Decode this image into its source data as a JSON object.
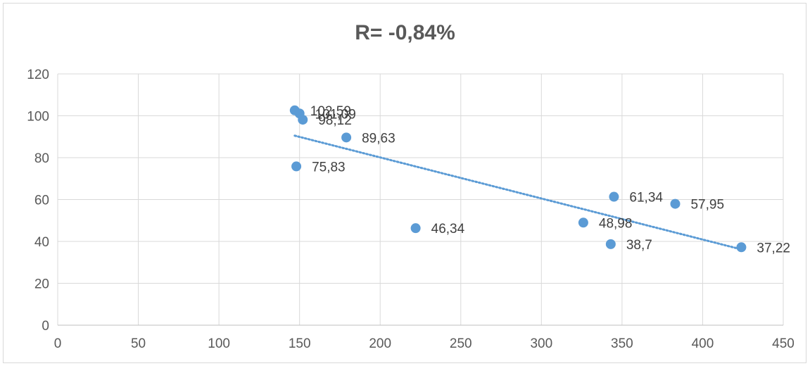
{
  "chart_data": {
    "type": "scatter",
    "title": "R= -0,84%",
    "xlabel": "",
    "ylabel": "",
    "xlim": [
      0,
      450
    ],
    "ylim": [
      0,
      120
    ],
    "x_ticks": [
      "0",
      "50",
      "100",
      "150",
      "200",
      "250",
      "300",
      "350",
      "400",
      "450"
    ],
    "y_ticks": [
      "0",
      "20",
      "40",
      "60",
      "80",
      "100",
      "120"
    ],
    "grid": true,
    "legend": "none",
    "marker_color": "#5b9bd5",
    "trendline": {
      "type": "linear",
      "style": "dotted",
      "color": "#5b9bd5",
      "x_range": [
        147,
        424
      ],
      "y_at_start": 90.5,
      "y_at_end": 36.2
    },
    "series": [
      {
        "points": [
          {
            "x": 147,
            "y": 102.59,
            "label": "102,59"
          },
          {
            "x": 150,
            "y": 101.09,
            "label": "101,09"
          },
          {
            "x": 152,
            "y": 98.12,
            "label": "98,12"
          },
          {
            "x": 179,
            "y": 89.63,
            "label": "89,63"
          },
          {
            "x": 148,
            "y": 75.83,
            "label": "75,83"
          },
          {
            "x": 345,
            "y": 61.34,
            "label": "61,34"
          },
          {
            "x": 383,
            "y": 57.95,
            "label": "57,95"
          },
          {
            "x": 326,
            "y": 48.98,
            "label": "48,98"
          },
          {
            "x": 222,
            "y": 46.34,
            "label": "46,34"
          },
          {
            "x": 343,
            "y": 38.7,
            "label": "38,7"
          },
          {
            "x": 424,
            "y": 37.22,
            "label": "37,22"
          }
        ]
      }
    ]
  }
}
